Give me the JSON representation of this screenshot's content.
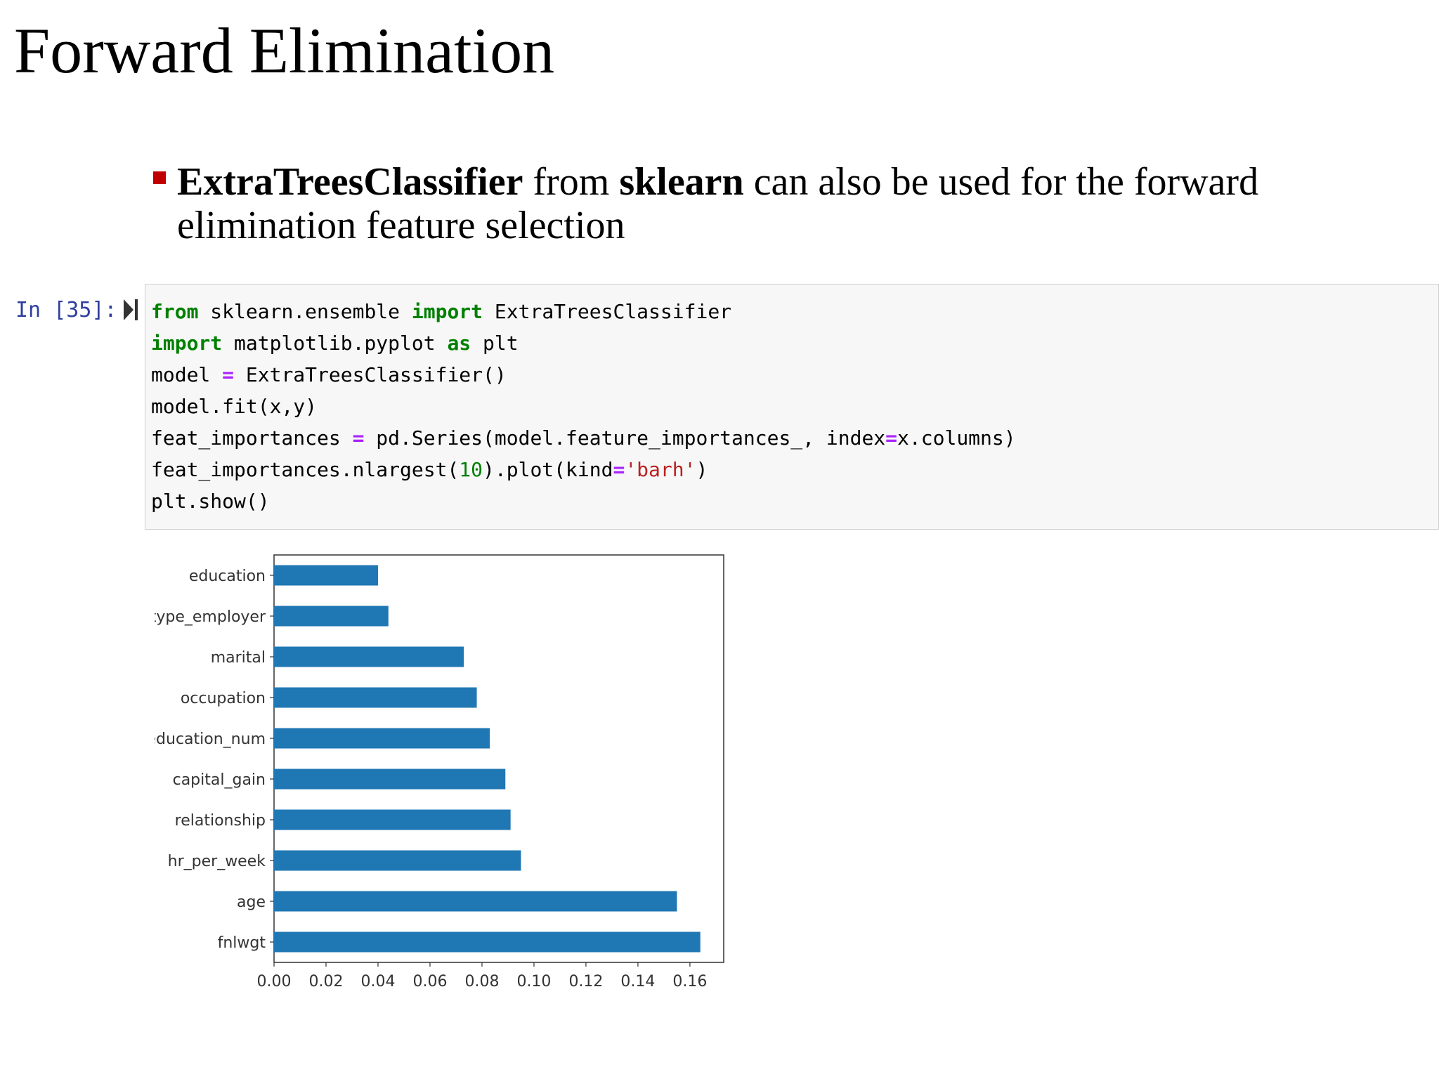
{
  "slide": {
    "title": "Forward Elimination",
    "bullet": {
      "b1": "ExtraTreesClassifier",
      "t1": " from ",
      "b2": "sklearn",
      "t2": " can also be used for the forward elimination feature selection"
    }
  },
  "cell": {
    "prompt": "In [35]:",
    "lines": [
      [
        {
          "t": "kw",
          "v": "from"
        },
        {
          "t": "",
          "v": " sklearn.ensemble "
        },
        {
          "t": "kw",
          "v": "import"
        },
        {
          "t": "",
          "v": " ExtraTreesClassifier"
        }
      ],
      [
        {
          "t": "kw",
          "v": "import"
        },
        {
          "t": "",
          "v": " matplotlib.pyplot "
        },
        {
          "t": "kw",
          "v": "as"
        },
        {
          "t": "",
          "v": " plt"
        }
      ],
      [
        {
          "t": "",
          "v": "model "
        },
        {
          "t": "op",
          "v": "="
        },
        {
          "t": "",
          "v": " ExtraTreesClassifier()"
        }
      ],
      [
        {
          "t": "",
          "v": "model.fit(x,y)"
        }
      ],
      [
        {
          "t": "",
          "v": "feat_importances "
        },
        {
          "t": "op",
          "v": "="
        },
        {
          "t": "",
          "v": " pd.Series(model.feature_importances_, index"
        },
        {
          "t": "op",
          "v": "="
        },
        {
          "t": "",
          "v": "x.columns)"
        }
      ],
      [
        {
          "t": "",
          "v": "feat_importances.nlargest("
        },
        {
          "t": "num",
          "v": "10"
        },
        {
          "t": "",
          "v": ").plot(kind"
        },
        {
          "t": "op",
          "v": "="
        },
        {
          "t": "str",
          "v": "'barh'"
        },
        {
          "t": "",
          "v": ")"
        }
      ],
      [
        {
          "t": "",
          "v": "plt.show()"
        }
      ]
    ]
  },
  "chart_data": {
    "type": "bar",
    "orientation": "horizontal",
    "categories": [
      "education",
      "type_employer",
      "marital",
      "occupation",
      "education_num",
      "capital_gain",
      "relationship",
      "hr_per_week",
      "age",
      "fnlwgt"
    ],
    "values": [
      0.04,
      0.044,
      0.073,
      0.078,
      0.083,
      0.089,
      0.091,
      0.095,
      0.155,
      0.164
    ],
    "xlim": [
      0,
      0.173
    ],
    "xticks": [
      "0.00",
      "0.02",
      "0.04",
      "0.06",
      "0.08",
      "0.10",
      "0.12",
      "0.14",
      "0.16"
    ],
    "bar_color": "#1f77b4",
    "grid": false
  }
}
